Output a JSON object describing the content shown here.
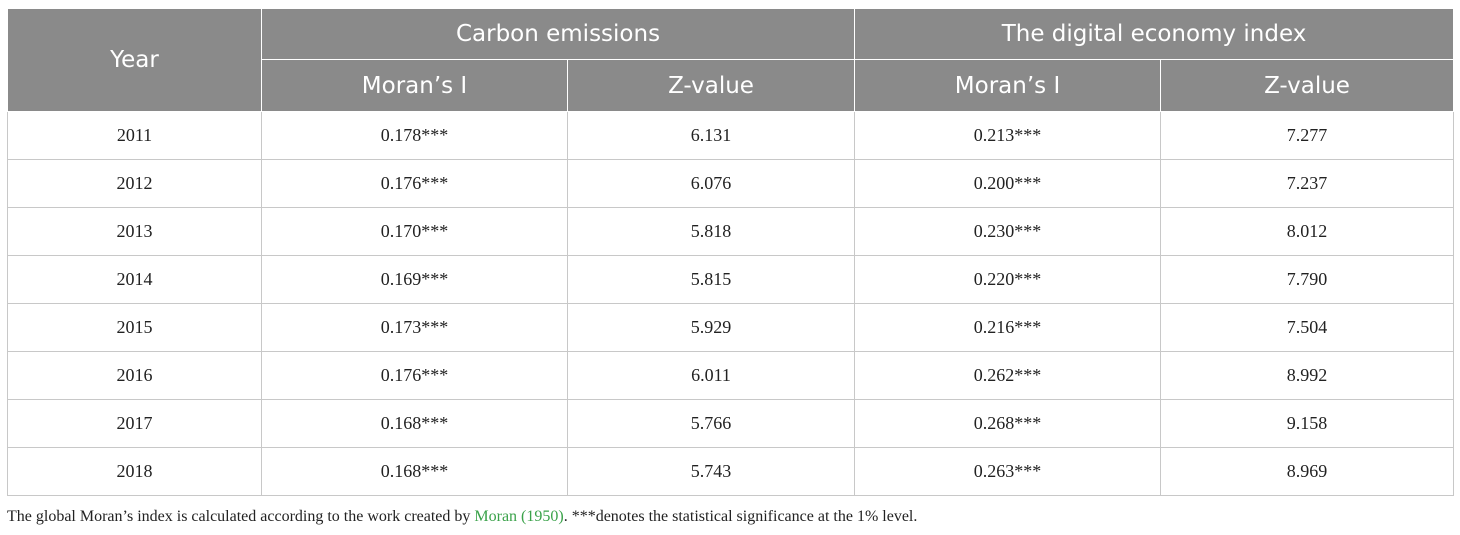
{
  "header": {
    "year": "Year",
    "group_carbon": "Carbon emissions",
    "group_digital": "The digital economy index",
    "col_moran": "Moran’s I",
    "col_z": "Z-value"
  },
  "rows": [
    {
      "year": "2011",
      "ce_moran": "0.178***",
      "ce_z": "6.131",
      "de_moran": "0.213***",
      "de_z": "7.277"
    },
    {
      "year": "2012",
      "ce_moran": "0.176***",
      "ce_z": "6.076",
      "de_moran": "0.200***",
      "de_z": "7.237"
    },
    {
      "year": "2013",
      "ce_moran": "0.170***",
      "ce_z": "5.818",
      "de_moran": "0.230***",
      "de_z": "8.012"
    },
    {
      "year": "2014",
      "ce_moran": "0.169***",
      "ce_z": "5.815",
      "de_moran": "0.220***",
      "de_z": "7.790"
    },
    {
      "year": "2015",
      "ce_moran": "0.173***",
      "ce_z": "5.929",
      "de_moran": "0.216***",
      "de_z": "7.504"
    },
    {
      "year": "2016",
      "ce_moran": "0.176***",
      "ce_z": "6.011",
      "de_moran": "0.262***",
      "de_z": "8.992"
    },
    {
      "year": "2017",
      "ce_moran": "0.168***",
      "ce_z": "5.766",
      "de_moran": "0.268***",
      "de_z": "9.158"
    },
    {
      "year": "2018",
      "ce_moran": "0.168***",
      "ce_z": "5.743",
      "de_moran": "0.263***",
      "de_z": "8.969"
    }
  ],
  "footnote": {
    "before": "The global Moran’s index is calculated according to the work created by ",
    "citation": "Moran (1950)",
    "after": ". ***denotes the statistical significance at the 1% level."
  },
  "colors": {
    "header_bg": "#8a8a8a",
    "citation": "#3aa24a"
  }
}
